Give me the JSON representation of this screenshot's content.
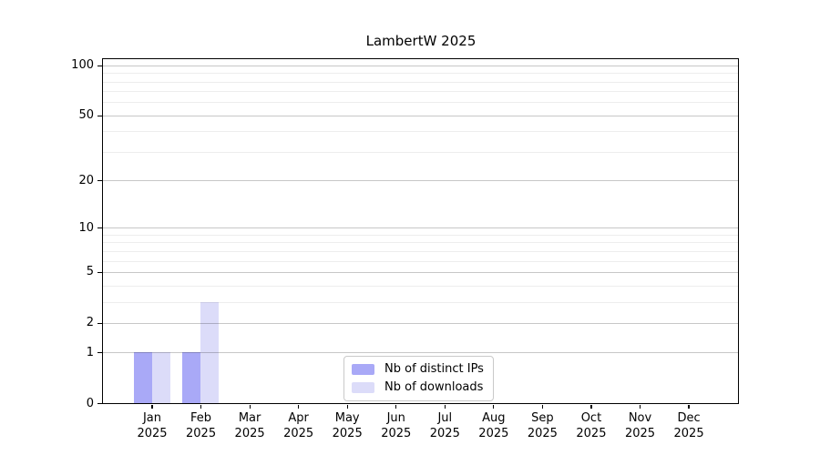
{
  "title": "LambertW 2025",
  "legend": {
    "items": [
      {
        "label": "Nb of distinct IPs",
        "color": "#a9a9f7"
      },
      {
        "label": "Nb of downloads",
        "color": "#dcdcf9"
      }
    ]
  },
  "chart_data": {
    "type": "bar",
    "title": "LambertW 2025",
    "categories": [
      "Jan",
      "Feb",
      "Mar",
      "Apr",
      "May",
      "Jun",
      "Jul",
      "Aug",
      "Sep",
      "Oct",
      "Nov",
      "Dec"
    ],
    "x_tick_second_line": "2025",
    "series": [
      {
        "name": "Nb of distinct IPs",
        "color": "#a9a9f7",
        "values": [
          1,
          1,
          0,
          0,
          0,
          0,
          0,
          0,
          0,
          0,
          0,
          0
        ]
      },
      {
        "name": "Nb of downloads",
        "color": "#dcdcf9",
        "values": [
          1,
          3,
          0,
          0,
          0,
          0,
          0,
          0,
          0,
          0,
          0,
          0
        ]
      }
    ],
    "xlabel": "",
    "ylabel": "",
    "y_axis": {
      "scale": "log10(1+x)",
      "major_ticks": [
        0,
        1,
        2,
        5,
        10,
        20,
        50,
        100
      ],
      "minor_gridlines": [
        3,
        4,
        6,
        7,
        8,
        9,
        30,
        40,
        60,
        70,
        80,
        90
      ],
      "max_value": 109
    },
    "grid": "horizontal",
    "legend_position": "bottom-center"
  },
  "colors": {
    "bar_distinct_ips": "#a9a9f7",
    "bar_downloads": "#dcdcf9",
    "grid_major": "#c7c7c7",
    "grid_minor": "#ededed",
    "axis": "#000000",
    "background": "#ffffff"
  }
}
